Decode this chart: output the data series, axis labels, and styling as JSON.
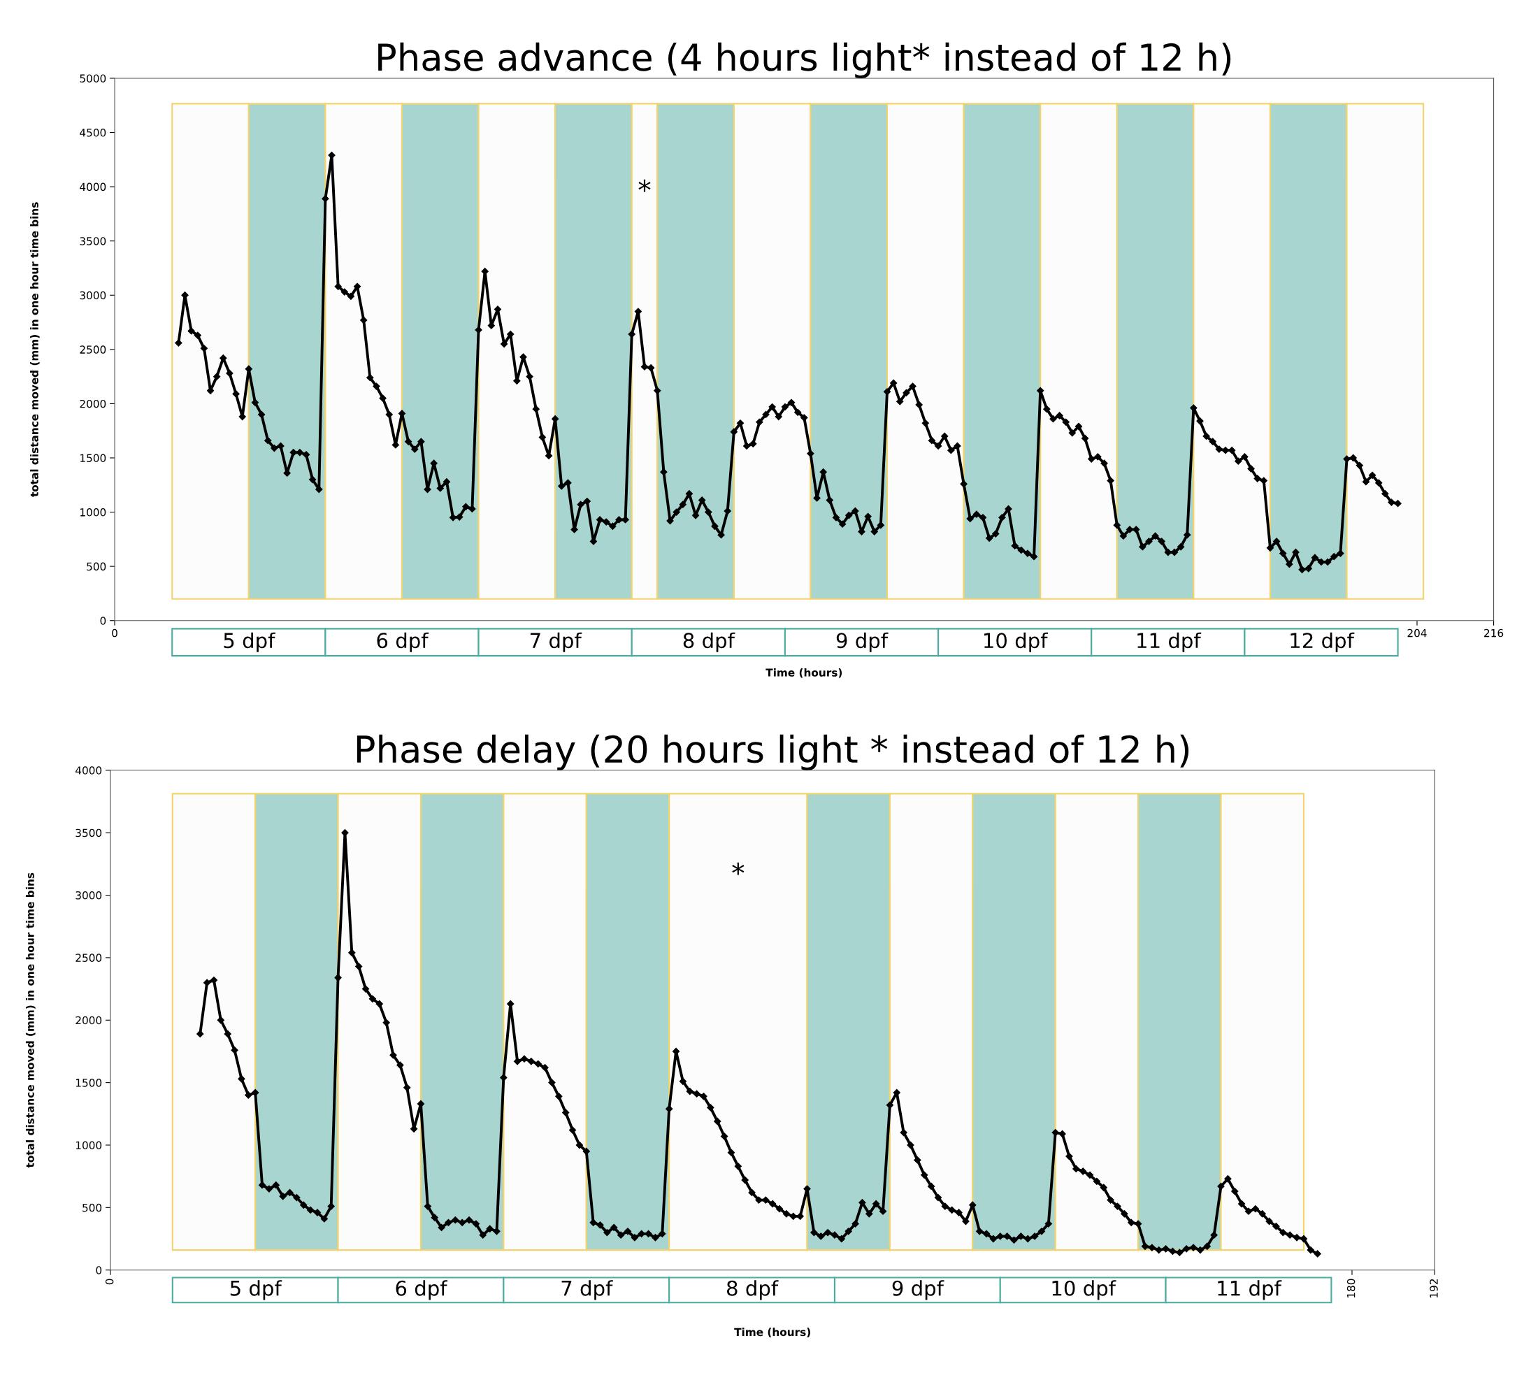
{
  "chart_data": [
    {
      "type": "line",
      "title": "Phase advance (4 hours light* instead of 12 h)",
      "xlabel": "Time (hours)",
      "ylabel": "total distance moved (mm) in one hour time bins",
      "xlim": [
        0,
        216
      ],
      "xticks": [
        0,
        204,
        216
      ],
      "ylim": [
        0,
        5000
      ],
      "yticks": [
        0,
        500,
        1000,
        1500,
        2000,
        2500,
        3000,
        3500,
        4000,
        4500,
        5000
      ],
      "marker": "diamond",
      "line_style": "solid",
      "series": [
        {
          "color": "#000000",
          "x": [
            10,
            11,
            12,
            13,
            14,
            15,
            16,
            17,
            18,
            19,
            20,
            21,
            22,
            23,
            24,
            25,
            26,
            27,
            28,
            29,
            30,
            31,
            32,
            33,
            34,
            35,
            36,
            37,
            38,
            39,
            40,
            41,
            42,
            43,
            44,
            45,
            46,
            47,
            48,
            49,
            50,
            51,
            52,
            53,
            54,
            55,
            56,
            57,
            58,
            59,
            60,
            61,
            62,
            63,
            64,
            65,
            66,
            67,
            68,
            69,
            70,
            71,
            72,
            73,
            74,
            75,
            76,
            77,
            78,
            79,
            80,
            81,
            82,
            83,
            84,
            85,
            86,
            87,
            88,
            89,
            90,
            91,
            92,
            93,
            94,
            95,
            96,
            97,
            98,
            99,
            100,
            101,
            102,
            103,
            104,
            105,
            106,
            107,
            108,
            109,
            110,
            111,
            112,
            113,
            114,
            115,
            116,
            117,
            118,
            119,
            120,
            121,
            122,
            123,
            124,
            125,
            126,
            127,
            128,
            129,
            130,
            131,
            132,
            133,
            134,
            135,
            136,
            137,
            138,
            139,
            140,
            141,
            142,
            143,
            144,
            145,
            146,
            147,
            148,
            149,
            150,
            151,
            152,
            153,
            154,
            155,
            156,
            157,
            158,
            159,
            160,
            161,
            162,
            163,
            164,
            165,
            166,
            167,
            168,
            169,
            170,
            171,
            172,
            173,
            174,
            175,
            176,
            177,
            178,
            179,
            180,
            181,
            182,
            183,
            184,
            185,
            186,
            187,
            188,
            189,
            190,
            191,
            192,
            193,
            194,
            195,
            196,
            197,
            198,
            199,
            200,
            201
          ],
          "values": [
            2560,
            3000,
            2670,
            2630,
            2510,
            2120,
            2250,
            2420,
            2280,
            2090,
            1880,
            2320,
            2010,
            1900,
            1660,
            1590,
            1610,
            1360,
            1550,
            1550,
            1530,
            1300,
            1210,
            3890,
            4290,
            3080,
            3030,
            2990,
            3080,
            2770,
            2240,
            2160,
            2050,
            1900,
            1620,
            1910,
            1650,
            1580,
            1650,
            1210,
            1450,
            1220,
            1280,
            950,
            955,
            1050,
            1030,
            2680,
            3220,
            2720,
            2870,
            2550,
            2640,
            2210,
            2430,
            2250,
            1950,
            1690,
            1520,
            1860,
            1240,
            1270,
            840,
            1070,
            1100,
            730,
            930,
            910,
            870,
            930,
            930,
            2640,
            2850,
            2340,
            2330,
            2120,
            1370,
            920,
            1000,
            1070,
            1170,
            970,
            1110,
            1000,
            870,
            790,
            1010,
            1740,
            1820,
            1610,
            1630,
            1830,
            1900,
            1970,
            1880,
            1970,
            2010,
            1920,
            1870,
            1540,
            1130,
            1370,
            1110,
            950,
            890,
            970,
            1010,
            820,
            960,
            820,
            880,
            2110,
            2190,
            2020,
            2100,
            2160,
            1990,
            1820,
            1660,
            1610,
            1700,
            1570,
            1610,
            1260,
            940,
            980,
            950,
            760,
            800,
            950,
            1030,
            690,
            650,
            620,
            590,
            2120,
            1950,
            1860,
            1890,
            1830,
            1730,
            1790,
            1680,
            1490,
            1510,
            1450,
            1290,
            880,
            780,
            840,
            840,
            680,
            730,
            780,
            730,
            630,
            630,
            680,
            790,
            1960,
            1840,
            1700,
            1650,
            1580,
            1570,
            1570,
            1470,
            1510,
            1400,
            1310,
            1290,
            670,
            730,
            620,
            520,
            630,
            470,
            480,
            580,
            540,
            540,
            590,
            620,
            1490,
            1500,
            1430,
            1280,
            1340,
            1270,
            1170,
            1090,
            1080
          ]
        }
      ],
      "bands": [
        {
          "axis": "x",
          "from": 9,
          "to": 21,
          "color": "#fcfcfc"
        },
        {
          "axis": "x",
          "from": 21,
          "to": 33,
          "color": "#a8d5cf"
        },
        {
          "axis": "x",
          "from": 33,
          "to": 45,
          "color": "#fcfcfc"
        },
        {
          "axis": "x",
          "from": 45,
          "to": 57,
          "color": "#a8d5cf"
        },
        {
          "axis": "x",
          "from": 57,
          "to": 69,
          "color": "#fcfcfc"
        },
        {
          "axis": "x",
          "from": 69,
          "to": 81,
          "color": "#a8d5cf"
        },
        {
          "axis": "x",
          "from": 81,
          "to": 85,
          "color": "#fcfcfc"
        },
        {
          "axis": "x",
          "from": 85,
          "to": 97,
          "color": "#a8d5cf"
        },
        {
          "axis": "x",
          "from": 97,
          "to": 109,
          "color": "#fcfcfc"
        },
        {
          "axis": "x",
          "from": 109,
          "to": 121,
          "color": "#a8d5cf"
        },
        {
          "axis": "x",
          "from": 121,
          "to": 133,
          "color": "#fcfcfc"
        },
        {
          "axis": "x",
          "from": 133,
          "to": 145,
          "color": "#a8d5cf"
        },
        {
          "axis": "x",
          "from": 145,
          "to": 157,
          "color": "#fcfcfc"
        },
        {
          "axis": "x",
          "from": 157,
          "to": 169,
          "color": "#a8d5cf"
        },
        {
          "axis": "x",
          "from": 169,
          "to": 181,
          "color": "#fcfcfc"
        },
        {
          "axis": "x",
          "from": 181,
          "to": 193,
          "color": "#a8d5cf"
        },
        {
          "axis": "x",
          "from": 193,
          "to": 205,
          "color": "#fcfcfc"
        }
      ],
      "annotations": [
        "*",
        "5 dpf",
        "6 dpf",
        "7 dpf",
        "8 dpf",
        "9 dpf",
        "10 dpf",
        "11 dpf",
        "12 dpf"
      ]
    },
    {
      "type": "line",
      "title": "Phase delay (20 hours light * instead of 12 h)",
      "xlabel": "Time (hours)",
      "ylabel": "total distance moved (mm) in one hour time bins",
      "xlim": [
        0,
        192
      ],
      "xticks": [
        0,
        180,
        192
      ],
      "ylim": [
        0,
        4000
      ],
      "yticks": [
        0,
        500,
        1000,
        1500,
        2000,
        2500,
        3000,
        3500,
        4000
      ],
      "marker": "diamond",
      "line_style": "solid",
      "series": [
        {
          "color": "#000000",
          "x": [
            13,
            14,
            15,
            16,
            17,
            18,
            19,
            20,
            21,
            22,
            23,
            24,
            25,
            26,
            27,
            28,
            29,
            30,
            31,
            32,
            33,
            34,
            35,
            36,
            37,
            38,
            39,
            40,
            41,
            42,
            43,
            44,
            45,
            46,
            47,
            48,
            49,
            50,
            51,
            52,
            53,
            54,
            55,
            56,
            57,
            58,
            59,
            60,
            61,
            62,
            63,
            64,
            65,
            66,
            67,
            68,
            69,
            70,
            71,
            72,
            73,
            74,
            75,
            76,
            77,
            78,
            79,
            80,
            81,
            82,
            83,
            84,
            85,
            86,
            87,
            88,
            89,
            90,
            91,
            92,
            93,
            94,
            95,
            96,
            97,
            98,
            99,
            100,
            101,
            102,
            103,
            104,
            105,
            106,
            107,
            108,
            109,
            110,
            111,
            112,
            113,
            114,
            115,
            116,
            117,
            118,
            119,
            120,
            121,
            122,
            123,
            124,
            125,
            126,
            127,
            128,
            129,
            130,
            131,
            132,
            133,
            134,
            135,
            136,
            137,
            138,
            139,
            140,
            141,
            142,
            143,
            144,
            145,
            146,
            147,
            148,
            149,
            150,
            151,
            152,
            153,
            154,
            155,
            156,
            157,
            158,
            159,
            160,
            161,
            162,
            163,
            164,
            165,
            166,
            167,
            168,
            169,
            170,
            171,
            172,
            173,
            174,
            175
          ],
          "values": [
            1890,
            2300,
            2320,
            2000,
            1890,
            1760,
            1530,
            1400,
            1420,
            680,
            650,
            680,
            590,
            620,
            580,
            520,
            480,
            460,
            410,
            510,
            2340,
            3500,
            2540,
            2430,
            2250,
            2170,
            2130,
            1980,
            1720,
            1640,
            1460,
            1130,
            1330,
            510,
            420,
            340,
            380,
            400,
            380,
            400,
            370,
            280,
            330,
            310,
            1540,
            2130,
            1670,
            1690,
            1670,
            1650,
            1620,
            1500,
            1390,
            1260,
            1120,
            1000,
            950,
            380,
            360,
            300,
            340,
            280,
            310,
            260,
            290,
            290,
            260,
            290,
            1290,
            1750,
            1510,
            1430,
            1410,
            1390,
            1300,
            1190,
            1070,
            940,
            830,
            720,
            620,
            560,
            560,
            530,
            490,
            450,
            430,
            430,
            650,
            300,
            270,
            300,
            280,
            250,
            310,
            370,
            540,
            450,
            530,
            470,
            1320,
            1420,
            1100,
            1000,
            880,
            760,
            670,
            580,
            510,
            480,
            460,
            390,
            520,
            310,
            290,
            250,
            270,
            270,
            240,
            270,
            250,
            270,
            310,
            370,
            1100,
            1090,
            910,
            810,
            790,
            760,
            710,
            660,
            560,
            510,
            450,
            380,
            370,
            190,
            180,
            160,
            170,
            150,
            140,
            170,
            180,
            160,
            190,
            280,
            670,
            730,
            630,
            530,
            470,
            490,
            450,
            390,
            350,
            300,
            280,
            260,
            250,
            160,
            130
          ]
        }
      ],
      "bands": [
        {
          "axis": "x",
          "from": 9,
          "to": 21,
          "color": "#fcfcfc"
        },
        {
          "axis": "x",
          "from": 21,
          "to": 33,
          "color": "#a8d5cf"
        },
        {
          "axis": "x",
          "from": 33,
          "to": 45,
          "color": "#fcfcfc"
        },
        {
          "axis": "x",
          "from": 45,
          "to": 57,
          "color": "#a8d5cf"
        },
        {
          "axis": "x",
          "from": 57,
          "to": 69,
          "color": "#fcfcfc"
        },
        {
          "axis": "x",
          "from": 69,
          "to": 81,
          "color": "#a8d5cf"
        },
        {
          "axis": "x",
          "from": 81,
          "to": 101,
          "color": "#fcfcfc"
        },
        {
          "axis": "x",
          "from": 101,
          "to": 113,
          "color": "#a8d5cf"
        },
        {
          "axis": "x",
          "from": 113,
          "to": 125,
          "color": "#fcfcfc"
        },
        {
          "axis": "x",
          "from": 125,
          "to": 137,
          "color": "#a8d5cf"
        },
        {
          "axis": "x",
          "from": 137,
          "to": 149,
          "color": "#fcfcfc"
        },
        {
          "axis": "x",
          "from": 149,
          "to": 161,
          "color": "#a8d5cf"
        },
        {
          "axis": "x",
          "from": 161,
          "to": 173,
          "color": "#fcfcfc"
        }
      ],
      "annotations": [
        "*",
        "5 dpf",
        "6 dpf",
        "7 dpf",
        "8 dpf",
        "9 dpf",
        "10 dpf",
        "11 dpf"
      ]
    }
  ]
}
